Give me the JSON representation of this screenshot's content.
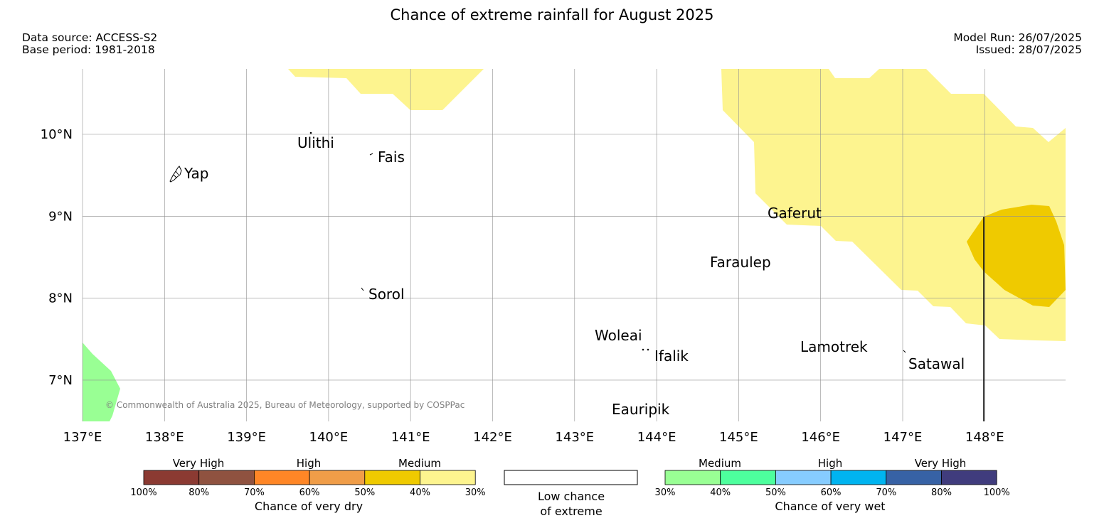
{
  "header": {
    "title": "Chance of extreme rainfall for August 2025",
    "data_source": "Data source: ACCESS-S2",
    "base_period": "Base period: 1981-2018",
    "model_run": "Model Run: 26/07/2025",
    "issued": "Issued: 28/07/2025"
  },
  "map": {
    "lon_range": [
      137,
      149
    ],
    "lat_range": [
      6.5,
      10.8
    ],
    "lon_ticks": [
      "137°E",
      "138°E",
      "139°E",
      "140°E",
      "141°E",
      "142°E",
      "143°E",
      "144°E",
      "145°E",
      "146°E",
      "147°E",
      "148°E"
    ],
    "lat_ticks": [
      "10°N",
      "9°N",
      "8°N",
      "7°N"
    ],
    "copyright": "© Commonwealth of Australia 2025, Bureau of Meteorology, supported by COSPPac",
    "places": [
      "Ulithi",
      "Fais",
      "Yap",
      "Gaferut",
      "Faraulep",
      "Sorol",
      "Woleai",
      "Ifalik",
      "Lamotrek",
      "Satawal",
      "Eauripik"
    ],
    "colors": {
      "medium_dry": "#fdf48f",
      "high_dry": "#efca00",
      "medium_wet": "#99ff94"
    }
  },
  "legend": {
    "dry": {
      "categories": [
        "Very High",
        "High",
        "Medium"
      ],
      "percents": [
        "100%",
        "80%",
        "70%",
        "60%",
        "50%",
        "40%",
        "30%"
      ],
      "colors": [
        "#8b3a32",
        "#8f5240",
        "#ff8626",
        "#f09d48",
        "#efca00",
        "#fdf48f"
      ],
      "caption": "Chance of very dry"
    },
    "low": {
      "line1": "Low chance",
      "line2": "of extreme"
    },
    "wet": {
      "categories": [
        "Medium",
        "High",
        "Very High"
      ],
      "percents": [
        "30%",
        "40%",
        "50%",
        "60%",
        "70%",
        "80%",
        "100%"
      ],
      "colors": [
        "#99ff94",
        "#4dff9d",
        "#86ccff",
        "#00b4f0",
        "#3762a5",
        "#403c7d"
      ],
      "caption": "Chance of very wet"
    }
  }
}
